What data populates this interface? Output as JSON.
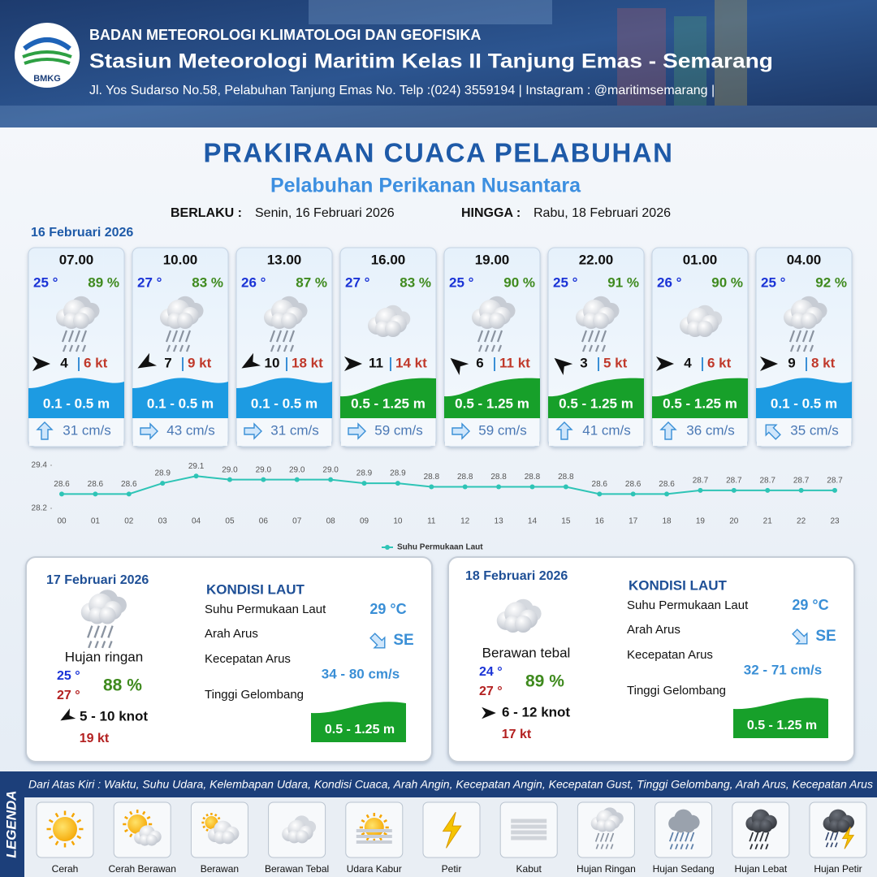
{
  "header": {
    "agency": "BADAN METEOROLOGI KLIMATOLOGI DAN GEOFISIKA",
    "station": "Stasiun Meteorologi Maritim Kelas II Tanjung Emas - Semarang",
    "contact": "Jl. Yos Sudarso No.58, Pelabuhan Tanjung Emas No. Telp :(024) 3559194 | Instagram : @maritimsemarang |",
    "logo_text": "BMKG"
  },
  "title": "PRAKIRAAN CUACA PELABUHAN",
  "subtitle": "Pelabuhan Perikanan Nusantara",
  "validity": {
    "from_label": "BERLAKU :",
    "from": "Senin, 16 Februari 2026",
    "to_label": "HINGGA :",
    "to": "Rabu, 18 Februari 2026"
  },
  "today": {
    "date": "16 Februari 2026",
    "forecasts": [
      {
        "time": "07.00",
        "temp": "25 °",
        "humidity": "89 %",
        "wind": "4",
        "gust": "6 kt",
        "wave": "0.1 - 0.5 m",
        "current": "31 cm/s"
      },
      {
        "time": "10.00",
        "temp": "27 °",
        "humidity": "83 %",
        "wind": "7",
        "gust": "9 kt",
        "wave": "0.1 - 0.5 m",
        "current": "43 cm/s"
      },
      {
        "time": "13.00",
        "temp": "26 °",
        "humidity": "87 %",
        "wind": "10",
        "gust": "18 kt",
        "wave": "0.1 - 0.5 m",
        "current": "31 cm/s"
      },
      {
        "time": "16.00",
        "temp": "27 °",
        "humidity": "83 %",
        "wind": "11",
        "gust": "14 kt",
        "wave": "0.5 - 1.25 m",
        "current": "59 cm/s"
      },
      {
        "time": "19.00",
        "temp": "25 °",
        "humidity": "90 %",
        "wind": "6",
        "gust": "11 kt",
        "wave": "0.5 - 1.25 m",
        "current": "59 cm/s"
      },
      {
        "time": "22.00",
        "temp": "25 °",
        "humidity": "91 %",
        "wind": "3",
        "gust": "5 kt",
        "wave": "0.5 - 1.25 m",
        "current": "41 cm/s"
      },
      {
        "time": "01.00",
        "temp": "26 °",
        "humidity": "90 %",
        "wind": "4",
        "gust": "6 kt",
        "wave": "0.5 - 1.25 m",
        "current": "36 cm/s"
      },
      {
        "time": "04.00",
        "temp": "25 °",
        "humidity": "92 %",
        "wind": "9",
        "gust": "8 kt",
        "wave": "0.1 - 0.5 m",
        "current": "35 cm/s"
      }
    ]
  },
  "chart_data": {
    "type": "line",
    "categories": [
      "00",
      "01",
      "02",
      "03",
      "04",
      "05",
      "06",
      "07",
      "08",
      "09",
      "10",
      "11",
      "12",
      "13",
      "14",
      "15",
      "16",
      "17",
      "18",
      "19",
      "20",
      "21",
      "22",
      "23"
    ],
    "series": [
      {
        "name": "Suhu Permukaan Laut",
        "color": "#2ec4b6",
        "values": [
          28.6,
          28.6,
          28.6,
          28.9,
          29.1,
          29.0,
          29.0,
          29.0,
          29.0,
          28.9,
          28.9,
          28.8,
          28.8,
          28.8,
          28.8,
          28.8,
          28.6,
          28.6,
          28.6,
          28.7,
          28.7,
          28.7,
          28.7,
          28.7
        ],
        "value_labels": [
          "28.6",
          "28.6",
          "28.6",
          "28.9",
          "29.1",
          "29.0",
          "29.0",
          "29.0",
          "29.0",
          "28.9",
          "28.9",
          "28.8",
          "28.8",
          "28.8",
          "28.8",
          "28.8",
          "28.6",
          "28.6",
          "28.6",
          "28.7",
          "28.7",
          "28.7",
          "28.7",
          "28.7"
        ]
      }
    ],
    "ylim": [
      28.2,
      29.4
    ],
    "yticks": [
      28.2,
      29.4
    ],
    "legend": "bottom"
  },
  "days": [
    {
      "date": "17 Februari 2026",
      "condition": "Hujan ringan",
      "temp_min": "25 °",
      "temp_max": "27 °",
      "humidity": "88 %",
      "wind": "5  - 10 knot",
      "gust": "19 kt",
      "sea": {
        "title": "KONDISI LAUT",
        "sst_label": "Suhu Permukaan Laut",
        "sst": "29 °C",
        "dir_label": "Arah Arus",
        "dir": "SE",
        "speed_label": "Kecepatan Arus",
        "speed": "34 - 80 cm/s",
        "wave_label": "Tinggi Gelombang",
        "wave": "0.5 - 1.25 m"
      }
    },
    {
      "date": "18 Februari 2026",
      "condition": "Berawan tebal",
      "temp_min": "24 °",
      "temp_max": "27 °",
      "humidity": "89 %",
      "wind": "6  - 12 knot",
      "gust": "17 kt",
      "sea": {
        "title": "KONDISI LAUT",
        "sst_label": "Suhu Permukaan Laut",
        "sst": "29 °C",
        "dir_label": "Arah Arus",
        "dir": "SE",
        "speed_label": "Kecepatan Arus",
        "speed": "32 - 71 cm/s",
        "wave_label": "Tinggi Gelombang",
        "wave": "0.5 - 1.25 m"
      }
    }
  ],
  "legend": {
    "title": "LEGENDA",
    "description": "Dari Atas Kiri : Waktu, Suhu Udara, Kelembapan Udara, Kondisi Cuaca, Arah Angin, Kecepatan Angin, Kecepatan Gust, Tinggi Gelombang, Arah Arus, Kecepatan Arus",
    "items": [
      "Cerah",
      "Cerah Berawan",
      "Berawan",
      "Berawan Tebal",
      "Udara Kabur",
      "Petir",
      "Kabut",
      "Hujan Ringan",
      "Hujan Sedang",
      "Hujan Lebat",
      "Hujan Petir"
    ]
  }
}
